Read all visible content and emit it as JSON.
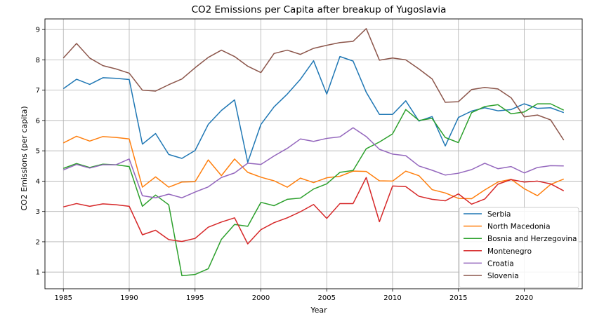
{
  "chart_data": {
    "type": "line",
    "title": "CO2 Emissions per Capita after breakup of Yugoslavia",
    "xlabel": "Year",
    "ylabel": "CO2 Emissions (per capita)",
    "xlim": [
      1983.6,
      2024.4
    ],
    "ylim": [
      0.45,
      9.35
    ],
    "xticks": [
      1985,
      1990,
      1995,
      2000,
      2005,
      2010,
      2015,
      2020
    ],
    "yticks": [
      1,
      2,
      3,
      4,
      5,
      6,
      7,
      8,
      9
    ],
    "grid": true,
    "legend_position": "lower-right",
    "x": [
      1985,
      1986,
      1987,
      1988,
      1989,
      1990,
      1991,
      1992,
      1993,
      1994,
      1995,
      1996,
      1997,
      1998,
      1999,
      2000,
      2001,
      2002,
      2003,
      2004,
      2005,
      2006,
      2007,
      2008,
      2009,
      2010,
      2011,
      2012,
      2013,
      2014,
      2015,
      2016,
      2017,
      2018,
      2019,
      2020,
      2021,
      2022,
      2023
    ],
    "series": [
      {
        "name": "Serbia",
        "color": "#1f77b4",
        "values": [
          7.05,
          7.36,
          7.19,
          7.41,
          7.39,
          7.35,
          5.22,
          5.57,
          4.88,
          4.75,
          5.01,
          5.87,
          6.33,
          6.68,
          4.62,
          5.87,
          6.45,
          6.87,
          7.36,
          7.97,
          6.87,
          8.11,
          7.96,
          6.93,
          6.2,
          6.2,
          6.65,
          5.98,
          6.13,
          5.16,
          6.1,
          6.31,
          6.42,
          6.32,
          6.36,
          6.55,
          6.4,
          6.42,
          6.26
        ]
      },
      {
        "name": "North Macedonia",
        "color": "#ff7f0e",
        "values": [
          5.26,
          5.48,
          5.32,
          5.47,
          5.44,
          5.39,
          3.8,
          4.14,
          3.8,
          3.97,
          3.98,
          4.7,
          4.18,
          4.73,
          4.29,
          4.13,
          4.01,
          3.8,
          4.1,
          3.95,
          4.11,
          4.16,
          4.33,
          4.32,
          4.01,
          4.0,
          4.33,
          4.18,
          3.72,
          3.61,
          3.43,
          3.42,
          3.71,
          3.97,
          4.06,
          3.75,
          3.52,
          3.89,
          4.07
        ]
      },
      {
        "name": "Bosnia and Herzegovina",
        "color": "#2ca02c",
        "values": [
          4.42,
          4.58,
          4.45,
          4.56,
          4.54,
          4.48,
          3.17,
          3.54,
          3.22,
          0.88,
          0.92,
          1.11,
          2.08,
          2.57,
          2.51,
          3.3,
          3.19,
          3.4,
          3.44,
          3.74,
          3.91,
          4.29,
          4.35,
          5.07,
          5.29,
          5.56,
          6.36,
          6.0,
          6.07,
          5.44,
          5.27,
          6.26,
          6.46,
          6.52,
          6.22,
          6.28,
          6.55,
          6.55,
          6.34
        ]
      },
      {
        "name": "Montenegro",
        "color": "#d62728",
        "values": [
          3.15,
          3.26,
          3.17,
          3.25,
          3.22,
          3.17,
          2.23,
          2.38,
          2.07,
          2.01,
          2.11,
          2.48,
          2.65,
          2.79,
          1.93,
          2.4,
          2.63,
          2.79,
          2.99,
          3.23,
          2.77,
          3.26,
          3.26,
          4.12,
          2.66,
          3.84,
          3.82,
          3.5,
          3.4,
          3.35,
          3.58,
          3.24,
          3.41,
          3.9,
          4.05,
          3.97,
          4.0,
          3.91,
          3.68
        ]
      },
      {
        "name": "Croatia",
        "color": "#9467bd",
        "values": [
          4.37,
          4.55,
          4.43,
          4.54,
          4.54,
          4.73,
          3.52,
          3.45,
          3.57,
          3.45,
          3.64,
          3.81,
          4.12,
          4.27,
          4.59,
          4.55,
          4.83,
          5.08,
          5.39,
          5.31,
          5.41,
          5.46,
          5.76,
          5.47,
          5.05,
          4.89,
          4.84,
          4.5,
          4.36,
          4.2,
          4.26,
          4.38,
          4.59,
          4.41,
          4.48,
          4.27,
          4.45,
          4.51,
          4.5
        ]
      },
      {
        "name": "Slovenia",
        "color": "#8c564b",
        "values": [
          8.06,
          8.54,
          8.06,
          7.81,
          7.7,
          7.56,
          7.0,
          6.97,
          7.18,
          7.37,
          7.74,
          8.08,
          8.32,
          8.11,
          7.79,
          7.58,
          8.21,
          8.32,
          8.18,
          8.38,
          8.48,
          8.57,
          8.61,
          9.03,
          7.99,
          8.06,
          8.0,
          7.7,
          7.37,
          6.6,
          6.62,
          7.02,
          7.09,
          7.04,
          6.75,
          6.12,
          6.18,
          6.02,
          5.35
        ]
      }
    ]
  }
}
